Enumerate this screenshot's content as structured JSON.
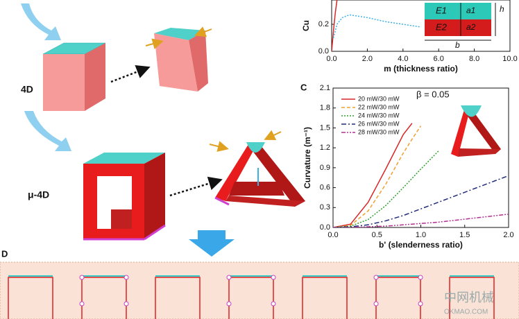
{
  "figure": {
    "label_4d": "4D",
    "label_mu4d": "μ-4D",
    "panel_c": "C",
    "panel_d": "D",
    "inset": {
      "e1": "E1",
      "e2": "E2",
      "a1": "a1",
      "a2": "a2",
      "h": "h",
      "b": "b"
    },
    "watermark": {
      "cn": "中网机械",
      "en": "OKMAO.COM"
    }
  },
  "chart_data": [
    {
      "type": "line",
      "ylabel": "Cu",
      "xlabel": "m (thickness ratio)",
      "xlim": [
        0,
        10
      ],
      "ylim": [
        0,
        0.38
      ],
      "xticks": [
        {
          "value": 0,
          "label": "0.0"
        },
        {
          "value": 2,
          "label": "2.0"
        },
        {
          "value": 4,
          "label": "4.0"
        },
        {
          "value": 6,
          "label": "6.0"
        },
        {
          "value": 8,
          "label": "8.0"
        },
        {
          "value": 10,
          "label": "10.0"
        }
      ],
      "yticks": [
        {
          "value": 0,
          "label": "0.0"
        },
        {
          "value": 0.2,
          "label": "0.2"
        }
      ],
      "series": [
        {
          "color": "#d62728",
          "dash": "",
          "x": [
            0,
            0.1,
            0.2,
            0.3
          ],
          "values": [
            0,
            0.15,
            0.28,
            0.38
          ]
        },
        {
          "color": "#3ab0e6",
          "dash": "2 2",
          "x": [
            0.1,
            0.3,
            0.6,
            1,
            1.5,
            2,
            3,
            4,
            5
          ],
          "values": [
            0.1,
            0.2,
            0.25,
            0.27,
            0.26,
            0.25,
            0.22,
            0.2,
            0.18
          ]
        }
      ]
    },
    {
      "type": "line",
      "ylabel": "Curvature (m⁻¹)",
      "xlabel": "b' (slenderness ratio)",
      "annotation": "β = 0.05",
      "xlim": [
        0,
        2
      ],
      "ylim": [
        0,
        2.1
      ],
      "xticks": [
        {
          "value": 0,
          "label": "0.0"
        },
        {
          "value": 0.5,
          "label": "0.5"
        },
        {
          "value": 1,
          "label": "1.0"
        },
        {
          "value": 1.5,
          "label": "1.5"
        },
        {
          "value": 2,
          "label": "2.0"
        }
      ],
      "yticks": [
        {
          "value": 0,
          "label": "0.0"
        },
        {
          "value": 0.3,
          "label": "0.3"
        },
        {
          "value": 0.6,
          "label": "0.6"
        },
        {
          "value": 0.9,
          "label": "0.9"
        },
        {
          "value": 1.2,
          "label": "1.2"
        },
        {
          "value": 1.5,
          "label": "1.5"
        },
        {
          "value": 1.8,
          "label": "1.8"
        },
        {
          "value": 2.1,
          "label": "2.1"
        }
      ],
      "x": [
        0,
        0.2,
        0.4,
        0.6,
        0.8,
        0.9,
        1.0,
        1.2,
        1.4,
        1.6,
        1.8,
        2.0
      ],
      "series": [
        {
          "name": "20 mW/30 mW",
          "color": "#d62728",
          "dash": "",
          "values": [
            0,
            0.05,
            0.38,
            0.88,
            1.4,
            1.57,
            null,
            null,
            null,
            null,
            null,
            null
          ]
        },
        {
          "name": "22 mW/30 mW",
          "color": "#f0a030",
          "dash": "5 3",
          "values": [
            0,
            0.03,
            0.25,
            0.65,
            1.12,
            1.33,
            1.53,
            null,
            null,
            null,
            null,
            null
          ]
        },
        {
          "name": "24 mW/30 mW",
          "color": "#2ca02c",
          "dash": "2 2",
          "values": [
            0,
            0.02,
            0.12,
            0.33,
            0.6,
            0.74,
            0.88,
            1.15,
            null,
            null,
            null,
            null
          ]
        },
        {
          "name": "26 mW/30 mW",
          "color": "#1f2a7a",
          "dash": "7 3 2 3",
          "values": [
            0,
            0.01,
            0.04,
            0.1,
            0.18,
            0.23,
            0.28,
            0.38,
            0.48,
            0.58,
            0.68,
            0.78
          ]
        },
        {
          "name": "28 mW/30 mW",
          "color": "#b03090",
          "dash": "6 2 2 2 2 2",
          "values": [
            0,
            0,
            0.01,
            0.02,
            0.04,
            0.05,
            0.06,
            0.08,
            0.11,
            0.14,
            0.17,
            0.2
          ]
        }
      ]
    }
  ]
}
